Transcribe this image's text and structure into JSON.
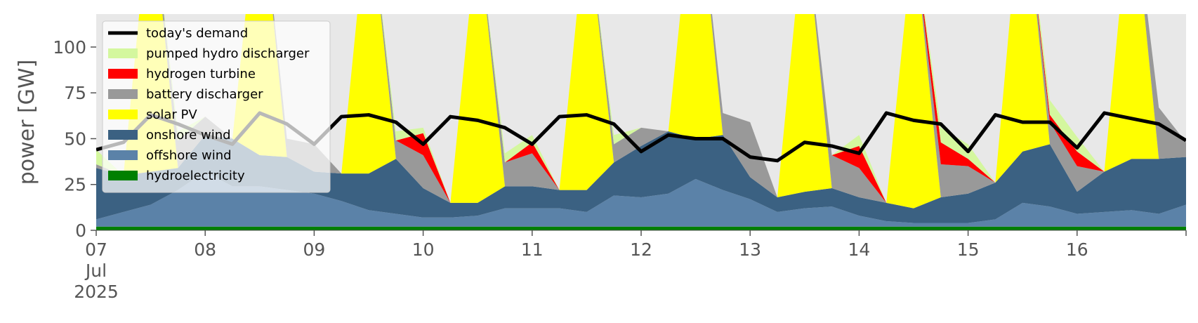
{
  "chart_data": {
    "type": "area",
    "title": "",
    "xlabel": "",
    "ylabel": "power [GW]",
    "ylim": [
      0,
      118
    ],
    "xlim": [
      "2025-07-07T00:00",
      "2025-07-17T00:00"
    ],
    "y_ticks": [
      0,
      25,
      50,
      75,
      100
    ],
    "x_ticks": [
      {
        "label": "07",
        "sublabel": [
          "Jul",
          "2025"
        ],
        "date": "2025-07-07"
      },
      {
        "label": "08",
        "date": "2025-07-08"
      },
      {
        "label": "09",
        "date": "2025-07-09"
      },
      {
        "label": "10",
        "date": "2025-07-10"
      },
      {
        "label": "11",
        "date": "2025-07-11"
      },
      {
        "label": "12",
        "date": "2025-07-12"
      },
      {
        "label": "13",
        "date": "2025-07-13"
      },
      {
        "label": "14",
        "date": "2025-07-14"
      },
      {
        "label": "15",
        "date": "2025-07-15"
      },
      {
        "label": "16",
        "date": "2025-07-16"
      }
    ],
    "grid": false,
    "legend_position": "top-left",
    "background": "#e8e8e8",
    "x": [
      "2025-07-07T00:00",
      "2025-07-07T06:00",
      "2025-07-07T12:00",
      "2025-07-07T18:00",
      "2025-07-08T00:00",
      "2025-07-08T06:00",
      "2025-07-08T12:00",
      "2025-07-08T18:00",
      "2025-07-09T00:00",
      "2025-07-09T06:00",
      "2025-07-09T12:00",
      "2025-07-09T18:00",
      "2025-07-10T00:00",
      "2025-07-10T06:00",
      "2025-07-10T12:00",
      "2025-07-10T18:00",
      "2025-07-11T00:00",
      "2025-07-11T06:00",
      "2025-07-11T12:00",
      "2025-07-11T18:00",
      "2025-07-12T00:00",
      "2025-07-12T06:00",
      "2025-07-12T12:00",
      "2025-07-12T18:00",
      "2025-07-13T00:00",
      "2025-07-13T06:00",
      "2025-07-13T12:00",
      "2025-07-13T18:00",
      "2025-07-14T00:00",
      "2025-07-14T06:00",
      "2025-07-14T12:00",
      "2025-07-14T18:00",
      "2025-07-15T00:00",
      "2025-07-15T06:00",
      "2025-07-15T12:00",
      "2025-07-15T18:00",
      "2025-07-16T00:00",
      "2025-07-16T06:00",
      "2025-07-16T12:00",
      "2025-07-16T18:00",
      "2025-07-17T00:00"
    ],
    "series": [
      {
        "name": "hydroelectricity",
        "color": "#008000",
        "values": [
          2,
          2,
          2,
          2,
          2,
          2,
          2,
          2,
          2,
          2,
          2,
          2,
          2,
          2,
          2,
          2,
          2,
          2,
          2,
          2,
          2,
          2,
          2,
          2,
          2,
          2,
          2,
          2,
          2,
          2,
          2,
          2,
          2,
          2,
          2,
          2,
          2,
          2,
          2,
          2,
          2
        ]
      },
      {
        "name": "offshore wind",
        "color": "#5b82a8",
        "values": [
          4,
          8,
          12,
          20,
          30,
          22,
          22,
          20,
          18,
          14,
          9,
          7,
          5,
          5,
          6,
          10,
          10,
          10,
          8,
          17,
          16,
          18,
          26,
          20,
          15,
          8,
          10,
          11,
          6,
          3,
          2,
          2,
          2,
          4,
          13,
          11,
          7,
          8,
          9,
          7,
          12
        ]
      },
      {
        "name": "onshore wind",
        "color": "#3b6182",
        "values": [
          28,
          20,
          18,
          12,
          20,
          26,
          17,
          18,
          12,
          15,
          20,
          30,
          16,
          8,
          7,
          12,
          12,
          10,
          12,
          18,
          28,
          34,
          22,
          30,
          12,
          8,
          9,
          10,
          10,
          10,
          8,
          14,
          16,
          20,
          28,
          34,
          12,
          22,
          28,
          30,
          26
        ]
      },
      {
        "name": "solar PV",
        "color": "#ffff00",
        "values": [
          0,
          0,
          150,
          0,
          0,
          0,
          150,
          0,
          0,
          0,
          150,
          0,
          0,
          0,
          150,
          0,
          0,
          0,
          150,
          0,
          0,
          0,
          150,
          0,
          0,
          0,
          150,
          0,
          0,
          0,
          150,
          0,
          0,
          0,
          150,
          0,
          0,
          0,
          150,
          0,
          0
        ]
      },
      {
        "name": "battery discharger",
        "color": "#999999",
        "values": [
          2,
          0,
          0,
          15,
          10,
          0,
          0,
          10,
          15,
          0,
          0,
          10,
          18,
          0,
          0,
          13,
          18,
          0,
          0,
          10,
          10,
          0,
          0,
          12,
          30,
          0,
          0,
          18,
          16,
          0,
          0,
          18,
          15,
          0,
          0,
          12,
          14,
          0,
          0,
          28,
          8
        ]
      },
      {
        "name": "hydrogen turbine",
        "color": "#ff0000",
        "values": [
          0,
          0,
          0,
          0,
          0,
          0,
          0,
          0,
          0,
          0,
          0,
          0,
          12,
          0,
          0,
          0,
          6,
          0,
          0,
          0,
          0,
          0,
          0,
          0,
          0,
          0,
          0,
          0,
          12,
          0,
          0,
          12,
          4,
          0,
          0,
          4,
          8,
          0,
          0,
          0,
          0
        ]
      },
      {
        "name": "pumped hydro discharger",
        "color": "#d4f79e",
        "values": [
          8,
          0,
          0,
          5,
          0,
          0,
          0,
          0,
          0,
          0,
          0,
          5,
          3,
          0,
          0,
          5,
          4,
          0,
          0,
          5,
          0,
          0,
          0,
          0,
          0,
          0,
          0,
          0,
          6,
          0,
          0,
          8,
          8,
          0,
          0,
          8,
          8,
          0,
          0,
          0,
          0
        ]
      }
    ],
    "demand": {
      "name": "today's demand",
      "color": "#000000",
      "values": [
        44,
        48,
        63,
        58,
        52,
        47,
        64,
        58,
        47,
        62,
        63,
        59,
        47,
        62,
        60,
        56,
        47,
        62,
        63,
        58,
        43,
        52,
        50,
        50,
        40,
        38,
        48,
        46,
        42,
        64,
        60,
        58,
        43,
        63,
        59,
        59,
        45,
        64,
        61,
        58,
        49
      ]
    }
  }
}
